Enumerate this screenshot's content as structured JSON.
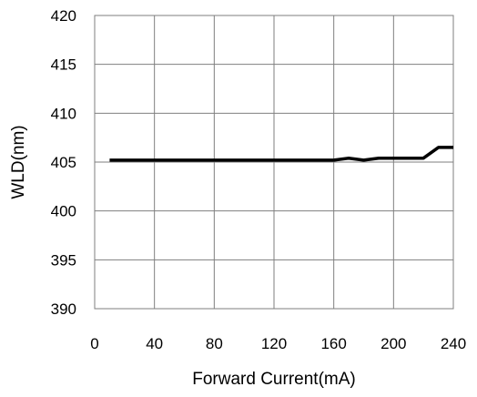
{
  "chart_data": {
    "type": "line",
    "title": "",
    "xlabel": "Forward Current(mA)",
    "ylabel": "WLD(nm)",
    "xlim": [
      0,
      240
    ],
    "ylim": [
      390,
      420
    ],
    "x_ticks": [
      0,
      40,
      80,
      120,
      160,
      200,
      240
    ],
    "y_ticks": [
      390,
      395,
      400,
      405,
      410,
      415,
      420
    ],
    "grid": true,
    "legend": "none",
    "series": [
      {
        "color": "#000000",
        "points": [
          {
            "x": 10,
            "y": 405.2
          },
          {
            "x": 160,
            "y": 405.2
          },
          {
            "x": 170,
            "y": 405.4
          },
          {
            "x": 180,
            "y": 405.2
          },
          {
            "x": 190,
            "y": 405.4
          },
          {
            "x": 220,
            "y": 405.4
          },
          {
            "x": 230,
            "y": 406.5
          },
          {
            "x": 240,
            "y": 406.5
          }
        ]
      }
    ]
  }
}
